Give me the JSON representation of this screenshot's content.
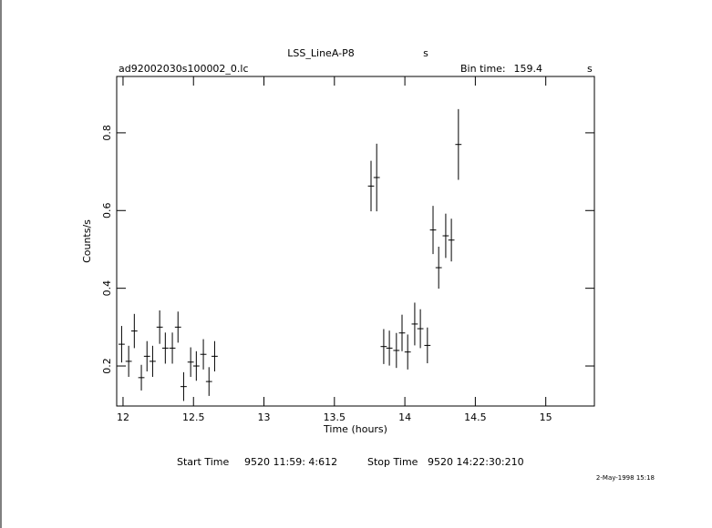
{
  "chart_data": {
    "type": "errorbar",
    "title": "LSS_LineA-P8",
    "title_unit": "s",
    "subtitle": "ad92002030s100002_0.lc",
    "bin_time_label": "Bin time:",
    "bin_time": 159.4,
    "bin_time_unit": "s",
    "xlabel": "Time (hours)",
    "ylabel": "Counts/s",
    "x": [
      11.99,
      12.04,
      12.08,
      12.13,
      12.17,
      12.21,
      12.26,
      12.3,
      12.35,
      12.39,
      12.43,
      12.48,
      12.52,
      12.57,
      12.61,
      12.65,
      13.76,
      13.8,
      13.85,
      13.89,
      13.94,
      13.98,
      14.02,
      14.07,
      14.11,
      14.16,
      14.2,
      14.24,
      14.29,
      14.33,
      14.38
    ],
    "values": [
      0.256,
      0.212,
      0.29,
      0.17,
      0.225,
      0.212,
      0.3,
      0.246,
      0.246,
      0.3,
      0.147,
      0.21,
      0.2,
      0.23,
      0.16,
      0.225,
      0.663,
      0.685,
      0.25,
      0.246,
      0.24,
      0.285,
      0.236,
      0.308,
      0.296,
      0.253,
      0.55,
      0.453,
      0.535,
      0.524,
      0.77
    ],
    "errors": [
      0.047,
      0.04,
      0.044,
      0.033,
      0.039,
      0.04,
      0.043,
      0.04,
      0.04,
      0.04,
      0.037,
      0.038,
      0.038,
      0.039,
      0.037,
      0.039,
      0.065,
      0.087,
      0.045,
      0.045,
      0.045,
      0.047,
      0.045,
      0.055,
      0.05,
      0.046,
      0.062,
      0.054,
      0.057,
      0.055,
      0.091
    ],
    "xerr": 0.022,
    "color": "#000000",
    "xlim": [
      11.955,
      15.345
    ],
    "ylim": [
      0.097,
      0.945
    ],
    "xticks": [
      12,
      12.5,
      13,
      13.5,
      14,
      14.5,
      15
    ],
    "yticks": [
      0.2,
      0.4,
      0.6,
      0.8
    ],
    "start_label": "Start Time",
    "start_time": "9520 11:59: 4:612",
    "stop_label": "Stop Time",
    "stop_time": "9520 14:22:30:210",
    "date": "2-May-1998 15:18"
  }
}
